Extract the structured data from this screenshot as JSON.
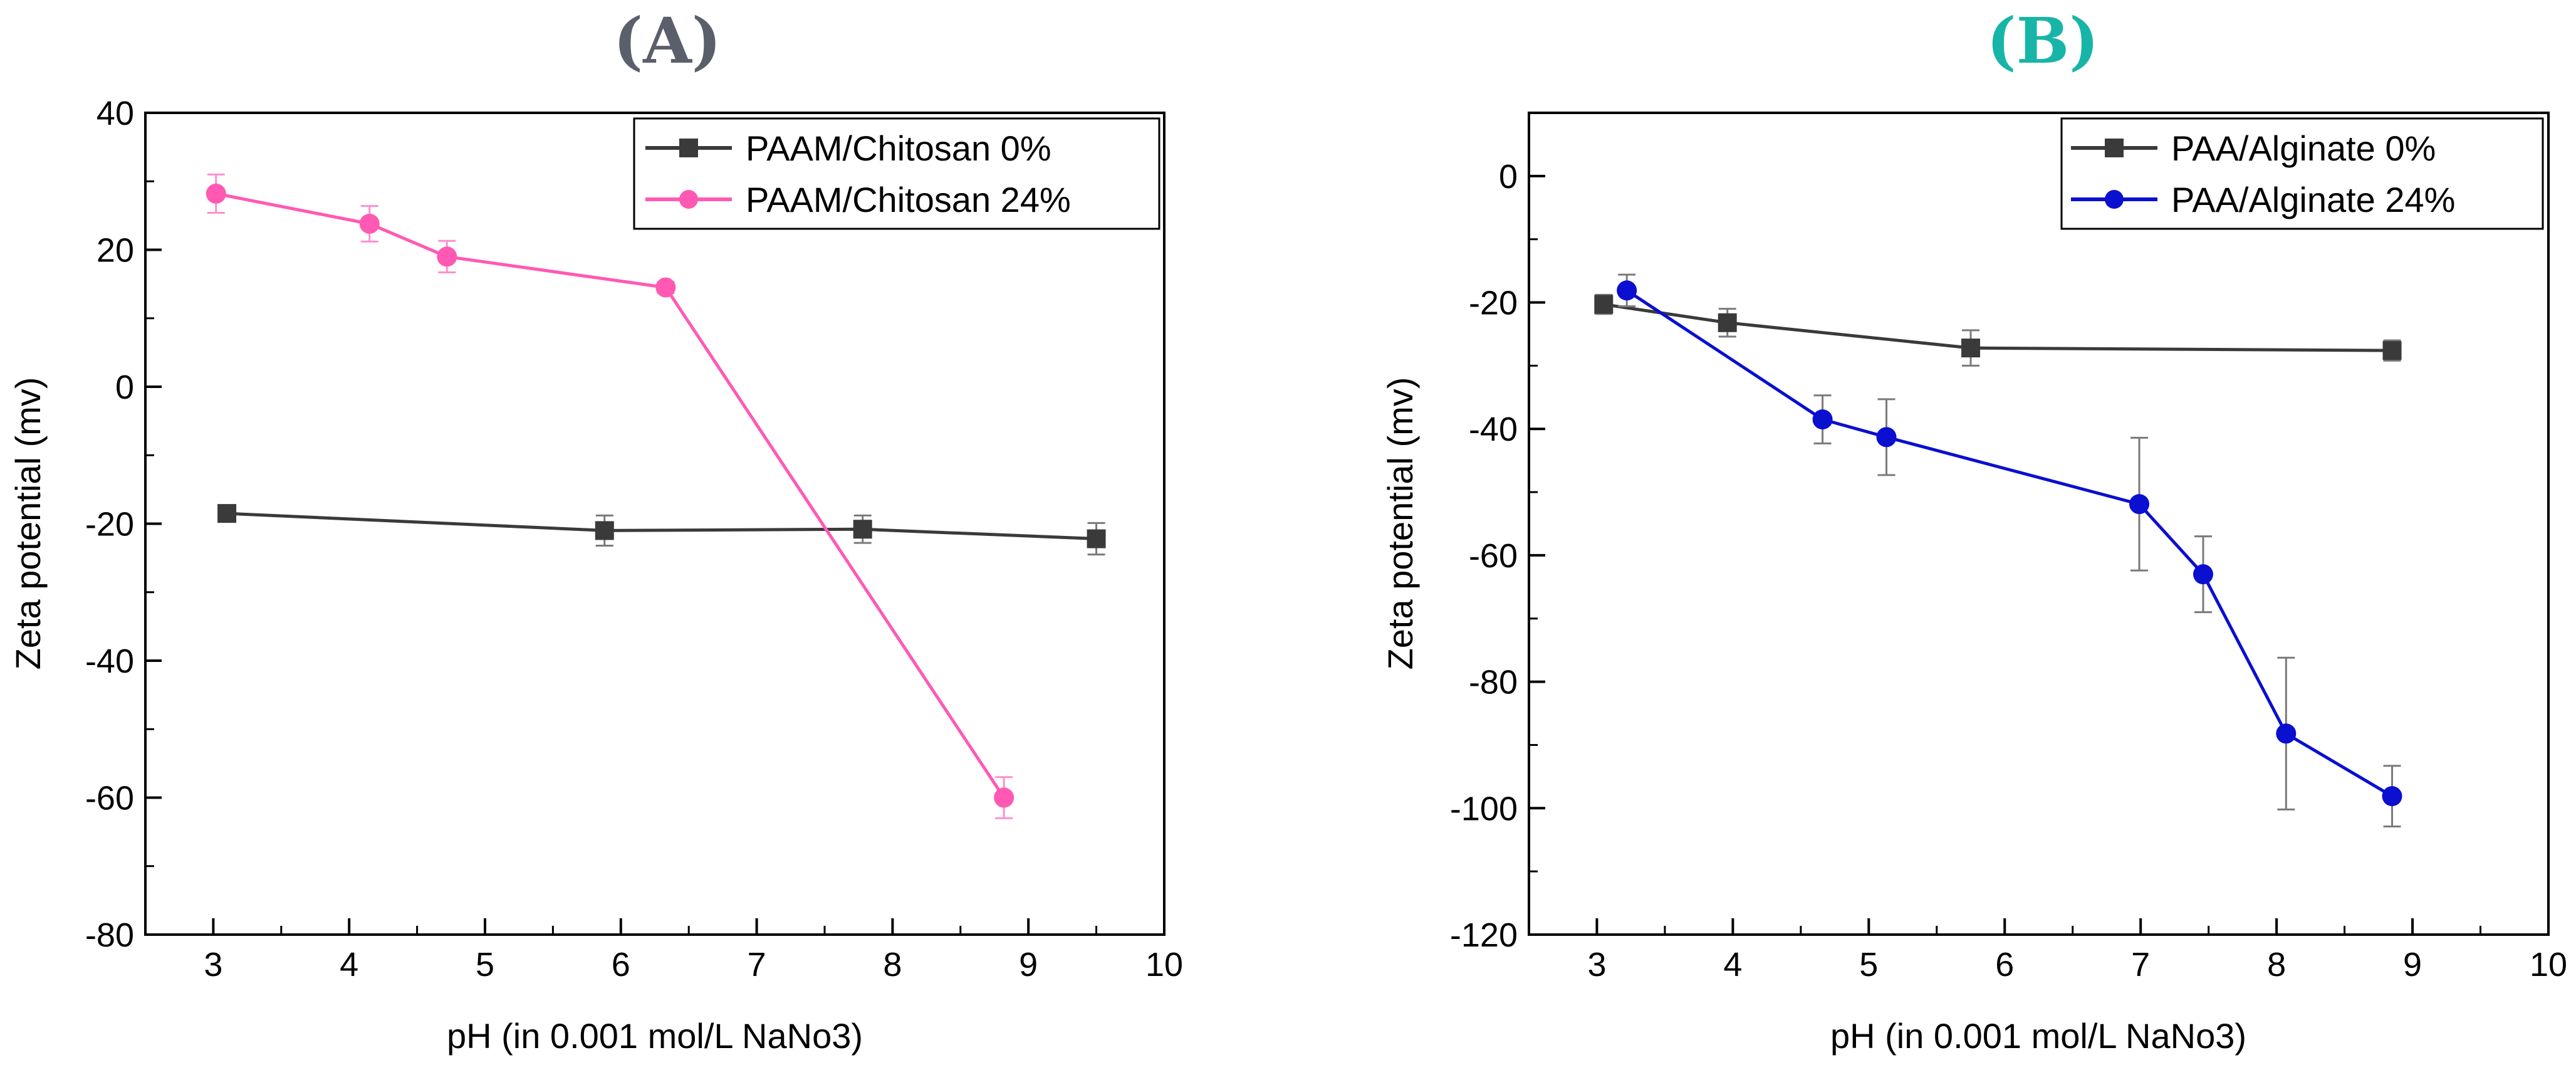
{
  "chart_data": [
    {
      "type": "line",
      "panel_label": "(A)",
      "panel_label_color": "#5a5f6b",
      "xlabel": "pH (in 0.001 mol/L NaNo3)",
      "ylabel": "Zeta potential (mv)",
      "xlim": [
        2.5,
        10
      ],
      "ylim": [
        -80,
        40
      ],
      "xticks": [
        3,
        4,
        5,
        6,
        7,
        8,
        9,
        10
      ],
      "yticks": [
        -80,
        -60,
        -40,
        -20,
        0,
        20,
        40
      ],
      "legend_position": "top-right",
      "grid": false,
      "series": [
        {
          "name": "PAAM/Chitosan 0%",
          "color": "#3a3a3a",
          "marker": "square",
          "x": [
            3.1,
            5.88,
            7.78,
            9.5
          ],
          "y": [
            -18.5,
            -21,
            -20.8,
            -22.2
          ],
          "err": [
            1.2,
            2.2,
            2.0,
            2.3
          ]
        },
        {
          "name": "PAAM/Chitosan 24%",
          "color": "#ff59b4",
          "marker": "circle",
          "x": [
            3.02,
            4.15,
            4.72,
            6.33,
            8.82
          ],
          "y": [
            28.2,
            23.8,
            19,
            14.5,
            -60
          ],
          "err": [
            2.8,
            2.6,
            2.3,
            0.8,
            3.0
          ]
        }
      ]
    },
    {
      "type": "line",
      "panel_label": "(B)",
      "panel_label_color": "#17b5a8",
      "xlabel": "pH (in 0.001 mol/L NaNo3)",
      "ylabel": "Zeta potential (mv)",
      "xlim": [
        2.5,
        10
      ],
      "ylim": [
        -120,
        10
      ],
      "xticks": [
        3,
        4,
        5,
        6,
        7,
        8,
        9,
        10
      ],
      "yticks": [
        -120,
        -100,
        -80,
        -60,
        -40,
        -20,
        0
      ],
      "legend_position": "top-right",
      "grid": false,
      "series": [
        {
          "name": "PAA/Alginate 0%",
          "color": "#3a3a3a",
          "marker": "square",
          "x": [
            3.05,
            3.96,
            5.75,
            8.85
          ],
          "y": [
            -20.3,
            -23.2,
            -27.2,
            -27.6
          ],
          "err": [
            1.5,
            2.2,
            2.8,
            1.6
          ]
        },
        {
          "name": "PAA/Alginate 24%",
          "color": "#0a0fd0",
          "marker": "circle",
          "x": [
            3.22,
            4.66,
            5.13,
            6.99,
            7.46,
            8.07,
            8.85
          ],
          "y": [
            -18.1,
            -38.5,
            -41.3,
            -51.9,
            -63,
            -88.2,
            -98.1
          ],
          "err": [
            2.5,
            3.8,
            6.0,
            10.5,
            6.0,
            12.0,
            4.8
          ]
        }
      ]
    }
  ]
}
